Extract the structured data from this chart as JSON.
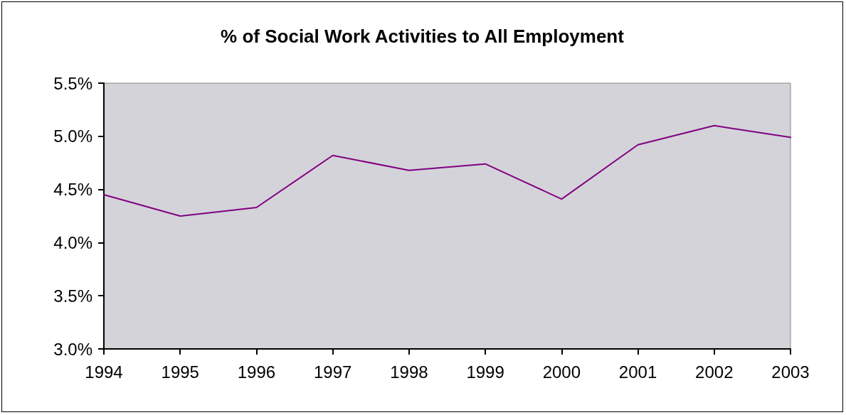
{
  "chart_data": {
    "type": "line",
    "title": "% of Social Work Activities to All Employment",
    "categories": [
      "1994",
      "1995",
      "1996",
      "1997",
      "1998",
      "1999",
      "2000",
      "2001",
      "2002",
      "2003"
    ],
    "series": [
      {
        "color": "#800080",
        "values": [
          4.45,
          4.25,
          4.33,
          4.82,
          4.68,
          4.74,
          4.41,
          4.92,
          5.1,
          4.99
        ]
      }
    ],
    "ylim": [
      3,
      5.5
    ],
    "yticks": [
      {
        "value": 3,
        "label": "3.0%"
      },
      {
        "value": 3.5,
        "label": "3.5%"
      },
      {
        "value": 4,
        "label": "4.0%"
      },
      {
        "value": 4.5,
        "label": "4.5%"
      },
      {
        "value": 5,
        "label": "5.0%"
      },
      {
        "value": 5.5,
        "label": "5.5%"
      }
    ],
    "grid": false,
    "marker": "none",
    "line_style": "solid"
  }
}
